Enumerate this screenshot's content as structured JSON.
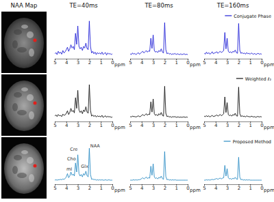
{
  "figure": {
    "column_titles": [
      "NAA Map",
      "TE=40ms",
      "TE=80ms",
      "TE=160ms"
    ]
  },
  "chart_data": [
    {
      "type": "line",
      "xlim": [
        5,
        0
      ],
      "ylim": [
        0,
        1.1
      ],
      "xticks": [
        5,
        4,
        3,
        2,
        1,
        0
      ],
      "x_label": "ppm",
      "tick_labels": "x",
      "x": [
        5,
        4.9,
        4.8,
        4.7,
        4.6,
        4.5,
        4.4,
        4.3,
        4.2,
        4.1,
        4,
        3.9,
        3.8,
        3.7,
        3.6,
        3.5,
        3.4,
        3.3,
        3.2,
        3.1,
        3,
        2.9,
        2.8,
        2.7,
        2.6,
        2.5,
        2.4,
        2.3,
        2.2,
        2.1,
        2,
        1.9,
        1.8,
        1.7,
        1.6,
        1.5,
        1.4,
        1.3,
        1.2,
        1.1,
        1,
        0.9,
        0.8,
        0.7,
        0.6,
        0.5,
        0.4,
        0.3,
        0.2,
        0.1,
        0
      ],
      "series": [
        {
          "color": "#1f1fd6",
          "values": [
            0.12,
            0.15,
            0.1,
            0.18,
            0.13,
            0.16,
            0.11,
            0.2,
            0.14,
            0.17,
            0.22,
            0.28,
            0.18,
            0.24,
            0.34,
            0.26,
            0.3,
            0.22,
            0.62,
            0.35,
            0.8,
            0.3,
            0.24,
            0.28,
            0.2,
            0.3,
            0.26,
            0.38,
            0.25,
            0.22,
            0.92,
            0.3,
            0.14,
            0.18,
            0.12,
            0.16,
            0.1,
            0.15,
            0.12,
            0.14,
            0.11,
            0.16,
            0.1,
            0.13,
            0.15,
            0.09,
            0.14,
            0.11,
            0.13,
            0.1,
            0.12
          ]
        }
      ]
    },
    {
      "type": "line",
      "xlim": [
        5,
        0
      ],
      "ylim": [
        0,
        1.1
      ],
      "xticks": [
        5,
        4,
        3,
        2,
        1,
        0
      ],
      "x_label": "ppm",
      "tick_labels": "x",
      "x": [
        5,
        4.9,
        4.8,
        4.7,
        4.6,
        4.5,
        4.4,
        4.3,
        4.2,
        4.1,
        4,
        3.9,
        3.8,
        3.7,
        3.6,
        3.5,
        3.4,
        3.3,
        3.2,
        3.1,
        3,
        2.9,
        2.8,
        2.7,
        2.6,
        2.5,
        2.4,
        2.3,
        2.2,
        2.1,
        2,
        1.9,
        1.8,
        1.7,
        1.6,
        1.5,
        1.4,
        1.3,
        1.2,
        1.1,
        1,
        0.9,
        0.8,
        0.7,
        0.6,
        0.5,
        0.4,
        0.3,
        0.2,
        0.1,
        0
      ],
      "series": [
        {
          "color": "#1f1fd6",
          "values": [
            0.12,
            0.1,
            0.14,
            0.11,
            0.13,
            0.1,
            0.12,
            0.15,
            0.11,
            0.13,
            0.16,
            0.18,
            0.14,
            0.17,
            0.2,
            0.16,
            0.19,
            0.18,
            0.5,
            0.25,
            0.58,
            0.2,
            0.16,
            0.18,
            0.15,
            0.2,
            0.17,
            0.24,
            0.16,
            0.14,
            0.88,
            0.22,
            0.12,
            0.14,
            0.11,
            0.13,
            0.1,
            0.12,
            0.11,
            0.13,
            0.1,
            0.12,
            0.11,
            0.1,
            0.12,
            0.1,
            0.11,
            0.12,
            0.1,
            0.11,
            0.1
          ]
        }
      ]
    },
    {
      "type": "line",
      "xlim": [
        5,
        0
      ],
      "ylim": [
        0,
        1.1
      ],
      "xticks": [
        5,
        4,
        3,
        2,
        1,
        0
      ],
      "x_label": "ppm",
      "tick_labels": "x",
      "legend": "upper right",
      "x": [
        5,
        4.9,
        4.8,
        4.7,
        4.6,
        4.5,
        4.4,
        4.3,
        4.2,
        4.1,
        4,
        3.9,
        3.8,
        3.7,
        3.6,
        3.5,
        3.4,
        3.3,
        3.2,
        3.1,
        3,
        2.9,
        2.8,
        2.7,
        2.6,
        2.5,
        2.4,
        2.3,
        2.2,
        2.1,
        2,
        1.9,
        1.8,
        1.7,
        1.6,
        1.5,
        1.4,
        1.3,
        1.2,
        1.1,
        1,
        0.9,
        0.8,
        0.7,
        0.6,
        0.5,
        0.4,
        0.3,
        0.2,
        0.1,
        0
      ],
      "series": [
        {
          "name": "Conjugate Phase",
          "color": "#1f1fd6",
          "values": [
            0.14,
            0.11,
            0.16,
            0.12,
            0.15,
            0.11,
            0.13,
            0.17,
            0.12,
            0.14,
            0.15,
            0.17,
            0.13,
            0.16,
            0.18,
            0.15,
            0.17,
            0.2,
            0.64,
            0.24,
            0.5,
            0.18,
            0.15,
            0.17,
            0.14,
            0.18,
            0.16,
            0.21,
            0.15,
            0.13,
            0.86,
            0.2,
            0.13,
            0.15,
            0.12,
            0.14,
            0.11,
            0.15,
            0.12,
            0.13,
            0.11,
            0.14,
            0.12,
            0.11,
            0.13,
            0.1,
            0.12,
            0.13,
            0.11,
            0.12,
            0.11
          ]
        }
      ]
    },
    {
      "type": "line",
      "xlim": [
        5,
        0
      ],
      "ylim": [
        0,
        1.1
      ],
      "xticks": [
        5,
        4,
        3,
        2,
        1,
        0
      ],
      "x_label": "ppm",
      "tick_labels": "x",
      "x": [
        5,
        4.9,
        4.8,
        4.7,
        4.6,
        4.5,
        4.4,
        4.3,
        4.2,
        4.1,
        4,
        3.9,
        3.8,
        3.7,
        3.6,
        3.5,
        3.4,
        3.3,
        3.2,
        3.1,
        3,
        2.9,
        2.8,
        2.7,
        2.6,
        2.5,
        2.4,
        2.3,
        2.2,
        2.1,
        2,
        1.9,
        1.8,
        1.7,
        1.6,
        1.5,
        1.4,
        1.3,
        1.2,
        1.1,
        1,
        0.9,
        0.8,
        0.7,
        0.6,
        0.5,
        0.4,
        0.3,
        0.2,
        0.1,
        0
      ],
      "series": [
        {
          "color": "#111111",
          "values": [
            0.13,
            0.16,
            0.12,
            0.17,
            0.14,
            0.15,
            0.12,
            0.18,
            0.15,
            0.16,
            0.2,
            0.26,
            0.17,
            0.22,
            0.32,
            0.24,
            0.27,
            0.21,
            0.58,
            0.32,
            0.76,
            0.28,
            0.22,
            0.26,
            0.19,
            0.28,
            0.24,
            0.36,
            0.23,
            0.2,
            0.9,
            0.27,
            0.13,
            0.16,
            0.12,
            0.15,
            0.11,
            0.14,
            0.12,
            0.13,
            0.11,
            0.15,
            0.1,
            0.12,
            0.14,
            0.1,
            0.13,
            0.11,
            0.12,
            0.1,
            0.11
          ]
        }
      ]
    },
    {
      "type": "line",
      "xlim": [
        5,
        0
      ],
      "ylim": [
        0,
        1.1
      ],
      "xticks": [
        5,
        4,
        3,
        2,
        1,
        0
      ],
      "x_label": "ppm",
      "tick_labels": "x",
      "x": [
        5,
        4.9,
        4.8,
        4.7,
        4.6,
        4.5,
        4.4,
        4.3,
        4.2,
        4.1,
        4,
        3.9,
        3.8,
        3.7,
        3.6,
        3.5,
        3.4,
        3.3,
        3.2,
        3.1,
        3,
        2.9,
        2.8,
        2.7,
        2.6,
        2.5,
        2.4,
        2.3,
        2.2,
        2.1,
        2,
        1.9,
        1.8,
        1.7,
        1.6,
        1.5,
        1.4,
        1.3,
        1.2,
        1.1,
        1,
        0.9,
        0.8,
        0.7,
        0.6,
        0.5,
        0.4,
        0.3,
        0.2,
        0.1,
        0
      ],
      "series": [
        {
          "color": "#111111",
          "values": [
            0.12,
            0.11,
            0.13,
            0.12,
            0.12,
            0.11,
            0.12,
            0.14,
            0.12,
            0.12,
            0.15,
            0.17,
            0.14,
            0.16,
            0.19,
            0.15,
            0.18,
            0.17,
            0.48,
            0.23,
            0.55,
            0.19,
            0.15,
            0.17,
            0.14,
            0.19,
            0.16,
            0.22,
            0.15,
            0.13,
            0.86,
            0.2,
            0.12,
            0.13,
            0.11,
            0.12,
            0.1,
            0.12,
            0.11,
            0.12,
            0.1,
            0.11,
            0.11,
            0.1,
            0.11,
            0.1,
            0.11,
            0.11,
            0.1,
            0.11,
            0.1
          ]
        }
      ]
    },
    {
      "type": "line",
      "xlim": [
        5,
        0
      ],
      "ylim": [
        0,
        1.1
      ],
      "xticks": [
        5,
        4,
        3,
        2,
        1,
        0
      ],
      "x_label": "ppm",
      "tick_labels": "x",
      "legend": "upper right",
      "x": [
        5,
        4.9,
        4.8,
        4.7,
        4.6,
        4.5,
        4.4,
        4.3,
        4.2,
        4.1,
        4,
        3.9,
        3.8,
        3.7,
        3.6,
        3.5,
        3.4,
        3.3,
        3.2,
        3.1,
        3,
        2.9,
        2.8,
        2.7,
        2.6,
        2.5,
        2.4,
        2.3,
        2.2,
        2.1,
        2,
        1.9,
        1.8,
        1.7,
        1.6,
        1.5,
        1.4,
        1.3,
        1.2,
        1.1,
        1,
        0.9,
        0.8,
        0.7,
        0.6,
        0.5,
        0.4,
        0.3,
        0.2,
        0.1,
        0
      ],
      "series": [
        {
          "name": "Weighted ℓ₂",
          "color": "#111111",
          "values": [
            0.13,
            0.12,
            0.14,
            0.12,
            0.14,
            0.11,
            0.13,
            0.15,
            0.12,
            0.13,
            0.14,
            0.16,
            0.13,
            0.15,
            0.17,
            0.14,
            0.16,
            0.19,
            0.6,
            0.22,
            0.46,
            0.17,
            0.14,
            0.16,
            0.13,
            0.17,
            0.15,
            0.2,
            0.14,
            0.13,
            0.84,
            0.19,
            0.12,
            0.14,
            0.12,
            0.13,
            0.11,
            0.14,
            0.12,
            0.12,
            0.11,
            0.13,
            0.12,
            0.11,
            0.12,
            0.1,
            0.12,
            0.12,
            0.11,
            0.12,
            0.11
          ]
        }
      ]
    },
    {
      "type": "line",
      "xlim": [
        5,
        0
      ],
      "ylim": [
        0,
        1.1
      ],
      "xticks": [
        5,
        4,
        3,
        2,
        1,
        0
      ],
      "x_label": "ppm",
      "tick_labels": "x",
      "x": [
        5,
        4.9,
        4.8,
        4.7,
        4.6,
        4.5,
        4.4,
        4.3,
        4.2,
        4.1,
        4,
        3.9,
        3.8,
        3.7,
        3.6,
        3.5,
        3.4,
        3.3,
        3.2,
        3.1,
        3,
        2.9,
        2.8,
        2.7,
        2.6,
        2.5,
        2.4,
        2.3,
        2.2,
        2.1,
        2,
        1.9,
        1.8,
        1.7,
        1.6,
        1.5,
        1.4,
        1.3,
        1.2,
        1.1,
        1,
        0.9,
        0.8,
        0.7,
        0.6,
        0.5,
        0.4,
        0.3,
        0.2,
        0.1,
        0
      ],
      "series": [
        {
          "color": "#2b8cc4",
          "values": [
            0.1,
            0.11,
            0.1,
            0.11,
            0.11,
            0.12,
            0.11,
            0.13,
            0.12,
            0.14,
            0.18,
            0.26,
            0.16,
            0.2,
            0.3,
            0.22,
            0.25,
            0.2,
            0.52,
            0.3,
            0.72,
            0.26,
            0.2,
            0.24,
            0.18,
            0.26,
            0.22,
            0.32,
            0.21,
            0.18,
            0.88,
            0.24,
            0.12,
            0.13,
            0.11,
            0.12,
            0.1,
            0.11,
            0.1,
            0.11,
            0.1,
            0.11,
            0.1,
            0.1,
            0.11,
            0.1,
            0.1,
            0.11,
            0.1,
            0.1,
            0.1
          ]
        }
      ],
      "annotations": [
        {
          "text": "NAA",
          "x": 1.5,
          "y": 0.9
        },
        {
          "text": "Cre",
          "x": 3.35,
          "y": 0.82
        },
        {
          "text": "Cho",
          "x": 3.55,
          "y": 0.58
        },
        {
          "text": "mI",
          "x": 3.75,
          "y": 0.34
        },
        {
          "text": "Glx",
          "x": 2.4,
          "y": 0.4
        }
      ]
    },
    {
      "type": "line",
      "xlim": [
        5,
        0
      ],
      "ylim": [
        0,
        1.1
      ],
      "xticks": [
        5,
        4,
        3,
        2,
        1,
        0
      ],
      "x_label": "ppm",
      "tick_labels": "x",
      "x": [
        5,
        4.9,
        4.8,
        4.7,
        4.6,
        4.5,
        4.4,
        4.3,
        4.2,
        4.1,
        4,
        3.9,
        3.8,
        3.7,
        3.6,
        3.5,
        3.4,
        3.3,
        3.2,
        3.1,
        3,
        2.9,
        2.8,
        2.7,
        2.6,
        2.5,
        2.4,
        2.3,
        2.2,
        2.1,
        2,
        1.9,
        1.8,
        1.7,
        1.6,
        1.5,
        1.4,
        1.3,
        1.2,
        1.1,
        1,
        0.9,
        0.8,
        0.7,
        0.6,
        0.5,
        0.4,
        0.3,
        0.2,
        0.1,
        0
      ],
      "series": [
        {
          "color": "#2b8cc4",
          "values": [
            0.1,
            0.1,
            0.1,
            0.11,
            0.1,
            0.11,
            0.1,
            0.11,
            0.11,
            0.12,
            0.14,
            0.16,
            0.13,
            0.15,
            0.18,
            0.14,
            0.16,
            0.15,
            0.44,
            0.22,
            0.5,
            0.18,
            0.14,
            0.16,
            0.13,
            0.17,
            0.15,
            0.2,
            0.14,
            0.12,
            0.8,
            0.19,
            0.11,
            0.12,
            0.1,
            0.11,
            0.1,
            0.11,
            0.1,
            0.11,
            0.1,
            0.1,
            0.1,
            0.1,
            0.1,
            0.1,
            0.1,
            0.1,
            0.1,
            0.1,
            0.1
          ]
        }
      ]
    },
    {
      "type": "line",
      "xlim": [
        5,
        0
      ],
      "ylim": [
        0,
        1.1
      ],
      "xticks": [
        5,
        4,
        3,
        2,
        1,
        0
      ],
      "x_label": "ppm",
      "tick_labels": "x",
      "legend": "upper right",
      "x": [
        5,
        4.9,
        4.8,
        4.7,
        4.6,
        4.5,
        4.4,
        4.3,
        4.2,
        4.1,
        4,
        3.9,
        3.8,
        3.7,
        3.6,
        3.5,
        3.4,
        3.3,
        3.2,
        3.1,
        3,
        2.9,
        2.8,
        2.7,
        2.6,
        2.5,
        2.4,
        2.3,
        2.2,
        2.1,
        2,
        1.9,
        1.8,
        1.7,
        1.6,
        1.5,
        1.4,
        1.3,
        1.2,
        1.1,
        1,
        0.9,
        0.8,
        0.7,
        0.6,
        0.5,
        0.4,
        0.3,
        0.2,
        0.1,
        0
      ],
      "series": [
        {
          "name": "Proposed Method",
          "color": "#2b8cc4",
          "values": [
            0.1,
            0.1,
            0.11,
            0.1,
            0.11,
            0.1,
            0.11,
            0.12,
            0.11,
            0.12,
            0.13,
            0.14,
            0.12,
            0.14,
            0.15,
            0.13,
            0.15,
            0.16,
            0.46,
            0.2,
            0.38,
            0.16,
            0.13,
            0.14,
            0.12,
            0.15,
            0.13,
            0.17,
            0.13,
            0.12,
            0.66,
            0.17,
            0.11,
            0.12,
            0.1,
            0.11,
            0.1,
            0.11,
            0.1,
            0.11,
            0.1,
            0.1,
            0.1,
            0.1,
            0.1,
            0.1,
            0.1,
            0.1,
            0.1,
            0.1,
            0.1
          ]
        }
      ]
    }
  ]
}
